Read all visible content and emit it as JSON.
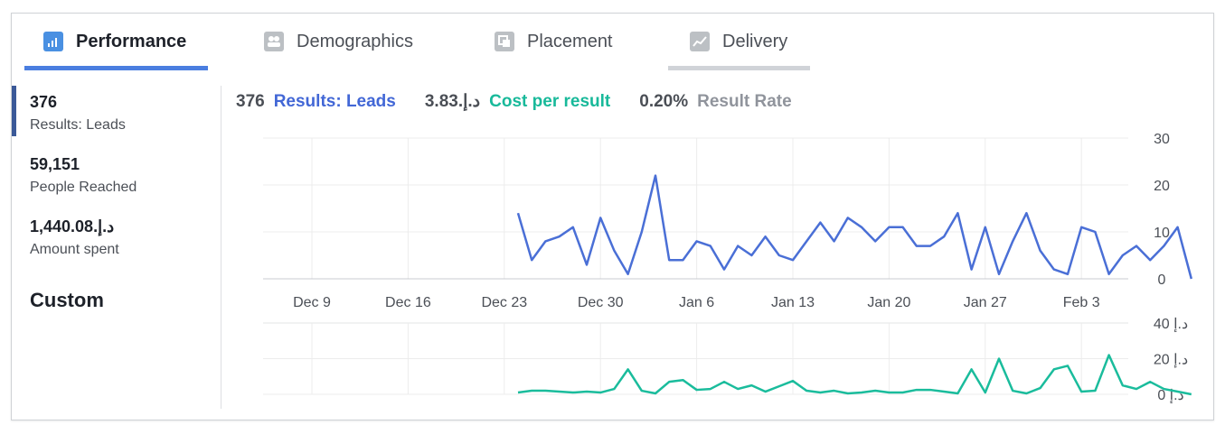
{
  "tabs": [
    {
      "label": "Performance",
      "icon": "bar-chart-icon",
      "active": true
    },
    {
      "label": "Demographics",
      "icon": "people-icon",
      "active": false
    },
    {
      "label": "Placement",
      "icon": "placement-icon",
      "active": false
    },
    {
      "label": "Delivery",
      "icon": "line-chart-icon",
      "active": false
    }
  ],
  "metrics": [
    {
      "value": "376",
      "label": "Results: Leads"
    },
    {
      "value": "59,151",
      "label": "People Reached"
    },
    {
      "value": "1,440.08.د.إ",
      "label": "Amount spent"
    }
  ],
  "custom_label": "Custom",
  "summary": {
    "results_value": "376",
    "results_label": "Results: Leads",
    "cost_value": "3.83.د.إ",
    "cost_label": "Cost per result",
    "rate_value": "0.20%",
    "rate_label": "Result Rate"
  },
  "colors": {
    "leads": "#4a6fd6",
    "cost": "#1abc9c",
    "accent": "#4a7ee0"
  },
  "chart_data": [
    {
      "type": "line",
      "series": [
        {
          "name": "Results: Leads",
          "values": [
            14,
            4,
            8,
            9,
            11,
            3,
            13,
            6,
            1,
            10,
            22,
            4,
            4,
            8,
            7,
            2,
            7,
            5,
            9,
            5,
            4,
            8,
            12,
            8,
            13,
            11,
            8,
            11,
            11,
            7,
            7,
            9,
            14,
            2,
            11,
            1,
            8,
            14,
            6,
            2,
            1,
            11,
            10,
            1,
            5,
            7,
            4,
            7,
            11,
            0
          ]
        }
      ],
      "x_start_day": 15,
      "x_ticks": [
        "Dec 9",
        "Dec 16",
        "Dec 23",
        "Dec 30",
        "Jan 6",
        "Jan 13",
        "Jan 20",
        "Jan 27",
        "Feb 3"
      ],
      "y_ticks": [
        "30",
        "20",
        "10",
        "0"
      ],
      "ylim": [
        0,
        30
      ]
    },
    {
      "type": "line",
      "series": [
        {
          "name": "Cost per result",
          "values": [
            1,
            2,
            2,
            1.5,
            1,
            1.5,
            1,
            3,
            14,
            2,
            0.5,
            7,
            8,
            2.5,
            3,
            7,
            3,
            5,
            1.5,
            4.5,
            7.5,
            2,
            1,
            2,
            0.5,
            1,
            2,
            1,
            1,
            2.5,
            2.5,
            1.5,
            0.5,
            14,
            1,
            20,
            2,
            0.5,
            3.5,
            14,
            16,
            1.5,
            2,
            22,
            5,
            3,
            7,
            3,
            1.5,
            0
          ]
        }
      ],
      "y_ticks": [
        "40 د.إ",
        "20 د.إ",
        "0 د.إ"
      ],
      "ylim": [
        0,
        40
      ]
    }
  ]
}
